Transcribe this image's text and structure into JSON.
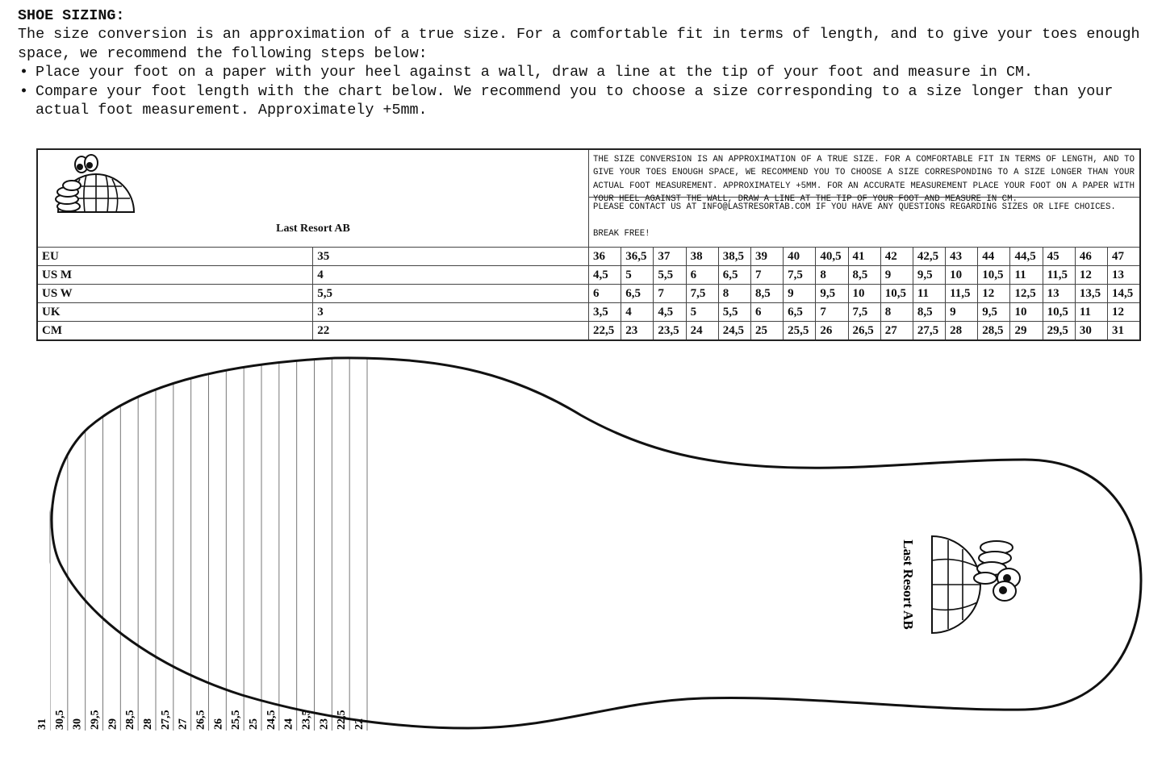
{
  "intro": {
    "title": "SHOE SIZING:",
    "paragraph": "The size conversion is an approximation of a true size. For a comfortable fit in terms of length, and to give your toes enough space, we recommend the following steps below:",
    "steps": [
      "Place your foot on a paper with your heel against a wall, draw a line at the tip of your foot and measure in CM.",
      "Compare your foot length with the chart below. We recommend you to choose a size corresponding to a size longer than your actual foot measurement. Approximately +5mm."
    ]
  },
  "chart": {
    "brand": "Last Resort AB",
    "note": "THE SIZE CONVERSION IS AN APPROXIMATION OF A TRUE SIZE. FOR A COMFORTABLE FIT IN TERMS OF LENGTH, AND TO GIVE YOUR TOES ENOUGH SPACE, WE RECOMMEND YOU TO CHOOSE A SIZE CORRESPONDING TO A SIZE LONGER THAN YOUR ACTUAL FOOT MEASUREMENT. APPROXIMATELY +5MM. FOR AN ACCURATE MEASUREMENT PLACE YOUR FOOT ON A PAPER WITH YOUR HEEL AGAINST THE WALL, DRAW A LINE AT THE TIP OF YOUR FOOT AND MEASURE IN CM.",
    "contact": "PLEASE CONTACT US AT INFO@LASTRESORTAB.COM IF YOU HAVE ANY QUESTIONS REGARDING SIZES OR LIFE CHOICES.",
    "slogan": "BREAK FREE!",
    "rows": [
      {
        "label": "EU",
        "values": [
          "35",
          "36",
          "36,5",
          "37",
          "38",
          "38,5",
          "39",
          "40",
          "40,5",
          "41",
          "42",
          "42,5",
          "43",
          "44",
          "44,5",
          "45",
          "46",
          "47"
        ]
      },
      {
        "label": "US M",
        "values": [
          "4",
          "4,5",
          "5",
          "5,5",
          "6",
          "6,5",
          "7",
          "7,5",
          "8",
          "8,5",
          "9",
          "9,5",
          "10",
          "10,5",
          "11",
          "11,5",
          "12",
          "13"
        ]
      },
      {
        "label": "US W",
        "values": [
          "5,5",
          "6",
          "6,5",
          "7",
          "7,5",
          "8",
          "8,5",
          "9",
          "9,5",
          "10",
          "10,5",
          "11",
          "11,5",
          "12",
          "12,5",
          "13",
          "13,5",
          "14,5"
        ]
      },
      {
        "label": "UK",
        "values": [
          "3",
          "3,5",
          "4",
          "4,5",
          "5",
          "5,5",
          "6",
          "6,5",
          "7",
          "7,5",
          "8",
          "8,5",
          "9",
          "9,5",
          "10",
          "10,5",
          "11",
          "12"
        ]
      },
      {
        "label": "CM",
        "values": [
          "22",
          "22,5",
          "23",
          "23,5",
          "24",
          "24,5",
          "25",
          "25,5",
          "26",
          "26,5",
          "27",
          "27,5",
          "28",
          "28,5",
          "29",
          "29,5",
          "30",
          "31"
        ]
      }
    ]
  },
  "template": {
    "brand": "Last Resort AB",
    "cm_marks": [
      "31",
      "30,5",
      "30",
      "29,5",
      "29",
      "28,5",
      "28",
      "27,5",
      "27",
      "26,5",
      "26",
      "25,5",
      "25",
      "24,5",
      "24",
      "23,5",
      "23",
      "22,5",
      "22"
    ]
  }
}
